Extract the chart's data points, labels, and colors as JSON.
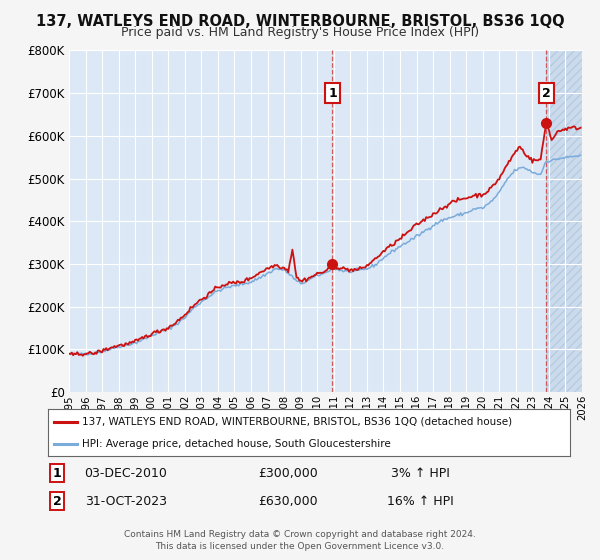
{
  "title_line1": "137, WATLEYS END ROAD, WINTERBOURNE, BRISTOL, BS36 1QQ",
  "title_line2": "Price paid vs. HM Land Registry's House Price Index (HPI)",
  "legend_line1": "137, WATLEYS END ROAD, WINTERBOURNE, BRISTOL, BS36 1QQ (detached house)",
  "legend_line2": "HPI: Average price, detached house, South Gloucestershire",
  "annotation1_label": "1",
  "annotation1_date": "03-DEC-2010",
  "annotation1_price": "£300,000",
  "annotation1_hpi": "3% ↑ HPI",
  "annotation1_year": 2010.92,
  "annotation1_value": 300000,
  "annotation2_label": "2",
  "annotation2_date": "31-OCT-2023",
  "annotation2_price": "£630,000",
  "annotation2_hpi": "16% ↑ HPI",
  "annotation2_year": 2023.83,
  "annotation2_value": 630000,
  "ylim": [
    0,
    800000
  ],
  "xlim_start": 1995,
  "xlim_end": 2026,
  "fig_bg_color": "#f5f5f5",
  "plot_bg_color": "#dce8f5",
  "grid_color": "#ffffff",
  "hpi_line_color": "#7aabda",
  "price_line_color": "#cc1111",
  "hatched_bg_color": "#c8d8ea",
  "footer_line1": "Contains HM Land Registry data © Crown copyright and database right 2024.",
  "footer_line2": "This data is licensed under the Open Government Licence v3.0."
}
